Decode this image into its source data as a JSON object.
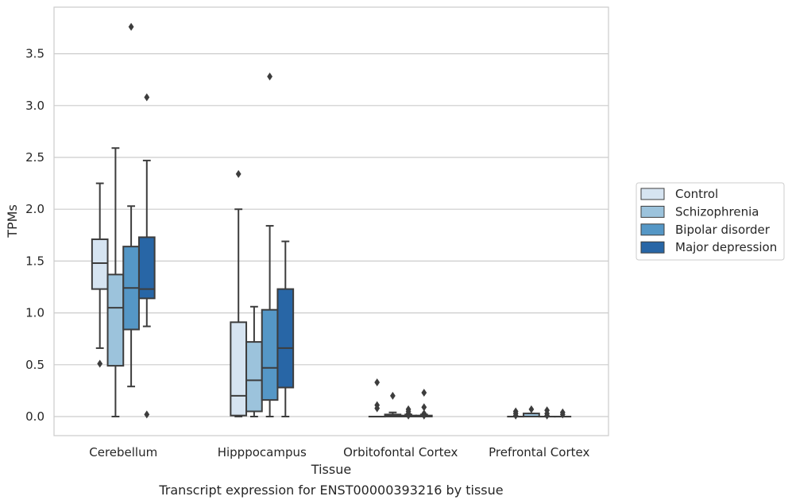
{
  "chart_data": {
    "type": "boxplot",
    "title": "",
    "xlabel": "Tissue",
    "ylabel": "TPMs",
    "caption": "Transcript expression for ENST00000393216 by tissue",
    "ylim": [
      -0.18,
      3.95
    ],
    "yticks": [
      0.0,
      0.5,
      1.0,
      1.5,
      2.0,
      2.5,
      3.0,
      3.5
    ],
    "ytick_labels": [
      "0.0",
      "0.5",
      "1.0",
      "1.5",
      "2.0",
      "2.5",
      "3.0",
      "3.5"
    ],
    "grid": "horizontal",
    "legend_position": "right",
    "categories": [
      "Cerebellum",
      "Hipppocampus",
      "Orbitofontal Cortex",
      "Prefrontal Cortex"
    ],
    "series": [
      {
        "name": "Control",
        "color": "#d6e4f1",
        "boxes": [
          {
            "whislo": 0.66,
            "q1": 1.23,
            "med": 1.48,
            "q3": 1.71,
            "whishi": 2.25,
            "fliers": [
              0.51
            ]
          },
          {
            "whislo": 0.0,
            "q1": 0.01,
            "med": 0.2,
            "q3": 0.91,
            "whishi": 2.0,
            "fliers": [
              2.34
            ]
          },
          {
            "whislo": 0.0,
            "q1": 0.0,
            "med": 0.0,
            "q3": 0.0,
            "whishi": 0.0,
            "fliers": [
              0.33,
              0.11,
              0.08
            ]
          },
          {
            "whislo": 0.0,
            "q1": 0.0,
            "med": 0.0,
            "q3": 0.0,
            "whishi": 0.0,
            "fliers": [
              0.05,
              0.03,
              0.01
            ]
          }
        ]
      },
      {
        "name": "Schizophrenia",
        "color": "#9cc3dc",
        "boxes": [
          {
            "whislo": 0.0,
            "q1": 0.49,
            "med": 1.05,
            "q3": 1.37,
            "whishi": 2.59,
            "fliers": []
          },
          {
            "whislo": 0.0,
            "q1": 0.05,
            "med": 0.35,
            "q3": 0.72,
            "whishi": 1.06,
            "fliers": []
          },
          {
            "whislo": 0.0,
            "q1": 0.0,
            "med": 0.01,
            "q3": 0.02,
            "whishi": 0.04,
            "fliers": [
              0.2
            ]
          },
          {
            "whislo": 0.0,
            "q1": 0.0,
            "med": 0.0,
            "q3": 0.03,
            "whishi": 0.03,
            "fliers": [
              0.07
            ]
          }
        ]
      },
      {
        "name": "Bipolar disorder",
        "color": "#5597c6",
        "boxes": [
          {
            "whislo": 0.29,
            "q1": 0.84,
            "med": 1.24,
            "q3": 1.64,
            "whishi": 2.03,
            "fliers": [
              3.76
            ]
          },
          {
            "whislo": 0.0,
            "q1": 0.16,
            "med": 0.47,
            "q3": 1.03,
            "whishi": 1.84,
            "fliers": [
              3.28
            ]
          },
          {
            "whislo": 0.0,
            "q1": 0.0,
            "med": 0.0,
            "q3": 0.01,
            "whishi": 0.02,
            "fliers": [
              0.07,
              0.05,
              0.03,
              0.01
            ]
          },
          {
            "whislo": 0.0,
            "q1": 0.0,
            "med": 0.0,
            "q3": 0.0,
            "whishi": 0.0,
            "fliers": [
              0.06,
              0.03,
              0.01
            ]
          }
        ]
      },
      {
        "name": "Major depression",
        "color": "#2866a6",
        "boxes": [
          {
            "whislo": 0.87,
            "q1": 1.14,
            "med": 1.23,
            "q3": 1.73,
            "whishi": 2.47,
            "fliers": [
              3.08,
              0.02
            ]
          },
          {
            "whislo": 0.0,
            "q1": 0.28,
            "med": 0.66,
            "q3": 1.23,
            "whishi": 1.69,
            "fliers": []
          },
          {
            "whislo": 0.0,
            "q1": 0.0,
            "med": 0.0,
            "q3": 0.01,
            "whishi": 0.02,
            "fliers": [
              0.23,
              0.09,
              0.03,
              0.01
            ]
          },
          {
            "whislo": 0.0,
            "q1": 0.0,
            "med": 0.0,
            "q3": 0.0,
            "whishi": 0.0,
            "fliers": [
              0.04,
              0.02
            ]
          }
        ]
      }
    ]
  }
}
